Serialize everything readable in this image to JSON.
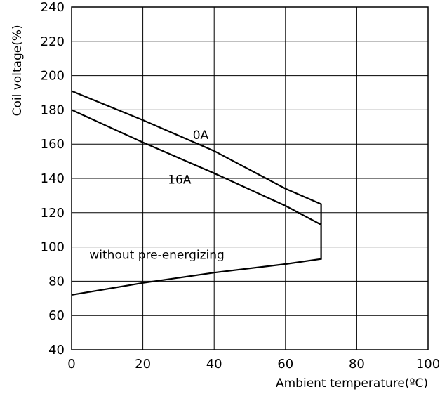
{
  "chart_data": {
    "type": "line",
    "title": "",
    "xlabel": "Ambient temperature(ºC)",
    "ylabel": "Coil voltage(%)",
    "xlim": [
      0,
      100
    ],
    "ylim": [
      40,
      240
    ],
    "x_ticks": [
      0,
      20,
      40,
      60,
      80,
      100
    ],
    "y_ticks": [
      40,
      60,
      80,
      100,
      120,
      140,
      160,
      180,
      200,
      220,
      240
    ],
    "grid": true,
    "series": [
      {
        "name": "0A",
        "x": [
          0,
          20,
          40,
          60,
          70,
          70
        ],
        "y": [
          191,
          174,
          156,
          134,
          125,
          113
        ]
      },
      {
        "name": "16A",
        "x": [
          0,
          20,
          40,
          60,
          70
        ],
        "y": [
          180,
          161,
          143,
          124,
          113
        ]
      },
      {
        "name": "without pre-energizing",
        "x": [
          0,
          20,
          40,
          60,
          70,
          70
        ],
        "y": [
          72,
          79,
          85,
          90,
          93,
          113
        ]
      }
    ],
    "annotations": [
      {
        "text": "0A",
        "x": 34,
        "y": 163
      },
      {
        "text": "16A",
        "x": 27,
        "y": 137
      },
      {
        "text": "without pre-energizing",
        "x": 5,
        "y": 93
      }
    ]
  }
}
